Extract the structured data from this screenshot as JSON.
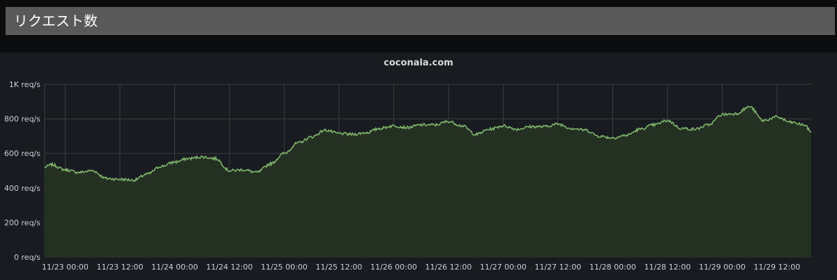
{
  "header": {
    "title": "リクエスト数"
  },
  "panel": {
    "title": "coconala.com"
  },
  "colors": {
    "line": "#7eb26d",
    "fill": "#243022",
    "grid": "#3b3e44",
    "tick_text": "#c7d0d9"
  },
  "chart_data": {
    "type": "area",
    "title": "coconala.com",
    "xlabel": "",
    "ylabel": "",
    "ylim": [
      0,
      1000
    ],
    "y_ticks": [
      {
        "value": 0,
        "label": "0 req/s"
      },
      {
        "value": 200,
        "label": "200 req/s"
      },
      {
        "value": 400,
        "label": "400 req/s"
      },
      {
        "value": 600,
        "label": "600 req/s"
      },
      {
        "value": 800,
        "label": "800 req/s"
      },
      {
        "value": 1000,
        "label": "1K req/s"
      }
    ],
    "x_range": [
      "11/22 19:30",
      "11/29 19:30"
    ],
    "x_ticks": [
      "11/23 00:00",
      "11/23 12:00",
      "11/24 00:00",
      "11/24 12:00",
      "11/25 00:00",
      "11/25 12:00",
      "11/26 00:00",
      "11/26 12:00",
      "11/27 00:00",
      "11/27 12:00",
      "11/28 00:00",
      "11/28 12:00",
      "11/29 00:00",
      "11/29 12:00"
    ],
    "grid": true,
    "legend": "none",
    "series": [
      {
        "x": [
          "11/22 19:30",
          "11/22 21:00",
          "11/23 00:00",
          "11/23 03:00",
          "11/23 06:00",
          "11/23 09:00",
          "11/23 12:00",
          "11/23 15:00",
          "11/23 18:00",
          "11/23 21:00",
          "11/24 00:00",
          "11/24 03:00",
          "11/24 06:00",
          "11/24 09:00",
          "11/24 12:00",
          "11/24 15:00",
          "11/24 18:00",
          "11/24 21:00",
          "11/25 00:00",
          "11/25 03:00",
          "11/25 06:00",
          "11/25 09:00",
          "11/25 12:00",
          "11/25 15:00",
          "11/25 18:00",
          "11/25 21:00",
          "11/26 00:00",
          "11/26 03:00",
          "11/26 06:00",
          "11/26 09:00",
          "11/26 12:00",
          "11/26 15:00",
          "11/26 18:00",
          "11/26 21:00",
          "11/27 00:00",
          "11/27 03:00",
          "11/27 06:00",
          "11/27 09:00",
          "11/27 12:00",
          "11/27 15:00",
          "11/27 18:00",
          "11/27 21:00",
          "11/28 00:00",
          "11/28 03:00",
          "11/28 06:00",
          "11/28 09:00",
          "11/28 12:00",
          "11/28 15:00",
          "11/28 18:00",
          "11/28 21:00",
          "11/29 00:00",
          "11/29 03:00",
          "11/29 06:00",
          "11/29 09:00",
          "11/29 12:00",
          "11/29 15:00",
          "11/29 18:00",
          "11/29 19:30"
        ],
        "values": [
          520,
          535,
          505,
          490,
          500,
          455,
          450,
          445,
          480,
          525,
          550,
          570,
          580,
          570,
          500,
          505,
          490,
          540,
          600,
          660,
          695,
          735,
          715,
          710,
          720,
          745,
          760,
          750,
          765,
          765,
          785,
          760,
          710,
          740,
          760,
          740,
          755,
          755,
          770,
          745,
          735,
          700,
          690,
          705,
          740,
          765,
          790,
          745,
          740,
          765,
          825,
          830,
          870,
          790,
          810,
          780,
          765,
          725
        ]
      }
    ]
  }
}
